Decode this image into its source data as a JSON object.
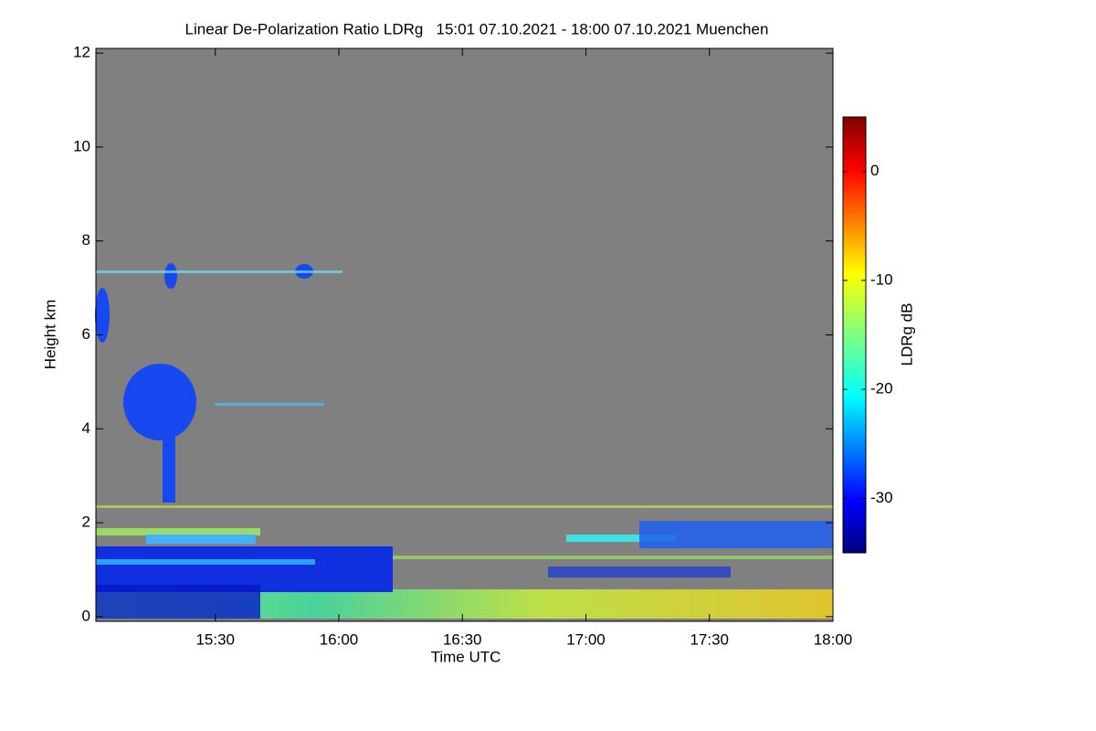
{
  "chart_data": {
    "type": "heatmap",
    "title": "Linear De-Polarization Ratio LDRg   15:01 07.10.2021 - 18:00 07.10.2021 Muenchen",
    "x_label": "Time UTC",
    "y_label": "Height km",
    "colorbar_label": "LDRg dB",
    "xlim": [
      901,
      1080
    ],
    "xticks": [
      {
        "value": 930,
        "label": "15:30"
      },
      {
        "value": 960,
        "label": "16:00"
      },
      {
        "value": 990,
        "label": "16:30"
      },
      {
        "value": 1020,
        "label": "17:00"
      },
      {
        "value": 1050,
        "label": "17:30"
      },
      {
        "value": 1080,
        "label": "18:00"
      }
    ],
    "ylim": [
      -0.1,
      12.1
    ],
    "yticks": [
      0,
      2,
      4,
      6,
      8,
      10,
      12
    ],
    "clim": [
      -35,
      5
    ],
    "cticks": [
      0,
      -10,
      -20,
      -30
    ]
  }
}
